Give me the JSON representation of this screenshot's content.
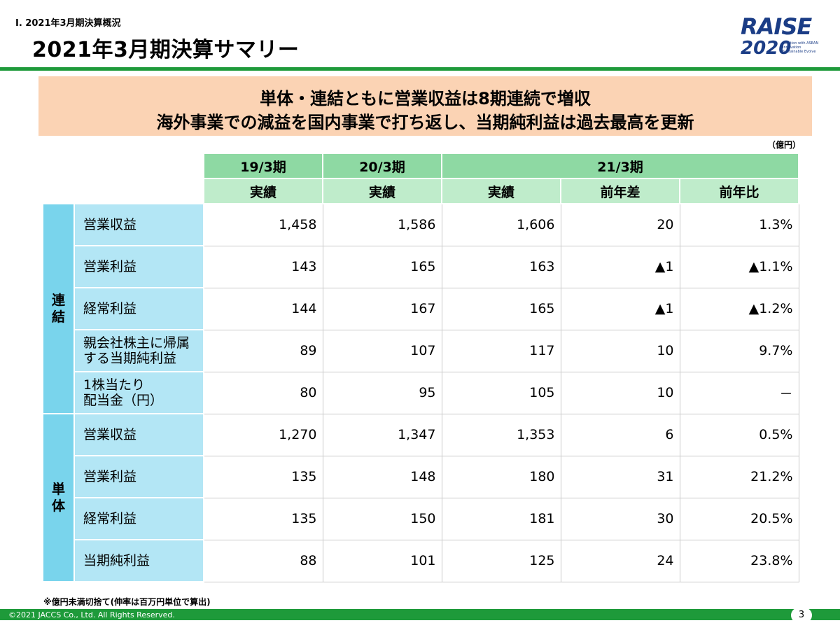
{
  "header": {
    "section": "Ⅰ. 2021年3月期決算概況",
    "title": "2021年3月期決算サマリー",
    "logo_word": "RAISE",
    "logo_year": "2020",
    "logo_tagline": "Relation with ASEAN Innovation Sustainable Evolve"
  },
  "banner": {
    "line1": "単体・連結ともに営業収益は8期連続で増収",
    "line2": "海外事業での減益を国内事業で打ち返し、当期純利益は過去最高を更新"
  },
  "unit": "（億円）",
  "table": {
    "period_headers": [
      "19/3期",
      "20/3期",
      "21/3期"
    ],
    "sub_headers": [
      "実績",
      "実績",
      "実績",
      "前年差",
      "前年比"
    ],
    "groups": [
      {
        "name": "連結",
        "rows": [
          {
            "label": "営業収益",
            "values": [
              "1,458",
              "1,586",
              "1,606",
              "20",
              "1.3%"
            ]
          },
          {
            "label": "営業利益",
            "values": [
              "143",
              "165",
              "163",
              "▲1",
              "▲1.1%"
            ]
          },
          {
            "label": "経常利益",
            "values": [
              "144",
              "167",
              "165",
              "▲1",
              "▲1.2%"
            ]
          },
          {
            "label": "親会社株主に帰属する当期純利益",
            "values": [
              "89",
              "107",
              "117",
              "10",
              "9.7%"
            ]
          },
          {
            "label": "1株当たり配当金（円）",
            "values": [
              "80",
              "95",
              "105",
              "10",
              "－"
            ]
          }
        ]
      },
      {
        "name": "単体",
        "rows": [
          {
            "label": "営業収益",
            "values": [
              "1,270",
              "1,347",
              "1,353",
              "6",
              "0.5%"
            ]
          },
          {
            "label": "営業利益",
            "values": [
              "135",
              "148",
              "180",
              "31",
              "21.2%"
            ]
          },
          {
            "label": "経常利益",
            "values": [
              "135",
              "150",
              "181",
              "30",
              "20.5%"
            ]
          },
          {
            "label": "当期純利益",
            "values": [
              "88",
              "101",
              "125",
              "24",
              "23.8%"
            ]
          }
        ]
      }
    ]
  },
  "footnote": "※億円未満切捨て(伸率は百万円単位で算出)",
  "footer": {
    "copyright": "©2021 JACCS Co., Ltd. All Rights Reserved.",
    "page_number": "3"
  },
  "colors": {
    "accent_green": "#1e9a3a",
    "banner_bg": "#fbd3b4",
    "header_dark": "#8ed9a3",
    "header_light": "#bfeccb",
    "group_blue": "#79d4ec",
    "label_blue": "#b3e6f5",
    "logo_navy": "#1b3d86"
  }
}
